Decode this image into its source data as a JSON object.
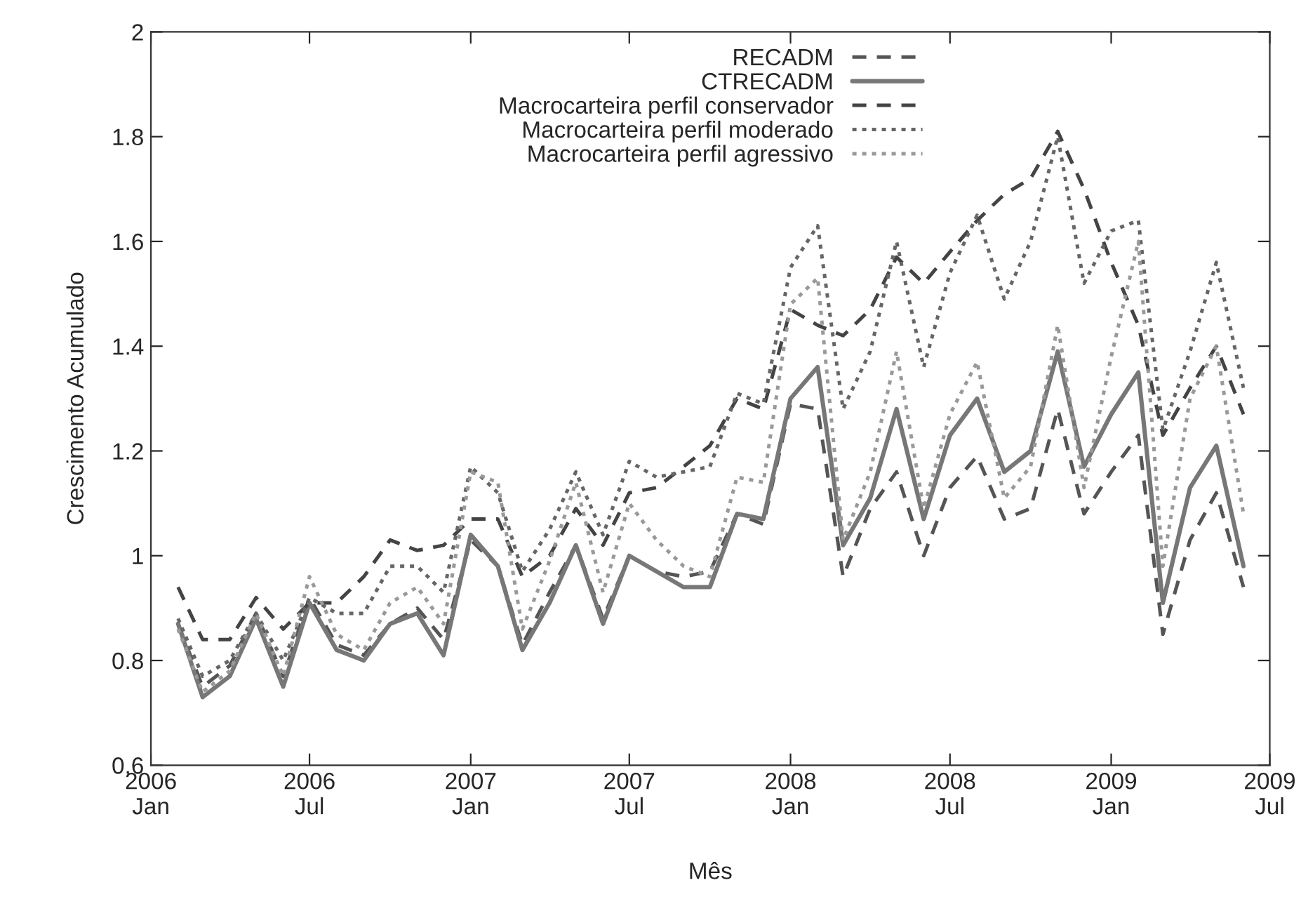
{
  "chart_data": {
    "type": "line",
    "xlabel": "Mês",
    "ylabel": "Crescimento Acumulado",
    "x": [
      "2006-02",
      "2006-03",
      "2006-04",
      "2006-05",
      "2006-06",
      "2006-07",
      "2006-08",
      "2006-09",
      "2006-10",
      "2006-11",
      "2006-12",
      "2007-01",
      "2007-02",
      "2007-03",
      "2007-04",
      "2007-05",
      "2007-06",
      "2007-07",
      "2007-08",
      "2007-09",
      "2007-10",
      "2007-11",
      "2007-12",
      "2008-01",
      "2008-02",
      "2008-03",
      "2008-04",
      "2008-05",
      "2008-06",
      "2008-07",
      "2008-08",
      "2008-09",
      "2008-10",
      "2008-11",
      "2008-12",
      "2009-01",
      "2009-02",
      "2009-03",
      "2009-04",
      "2009-05",
      "2009-06"
    ],
    "series": [
      {
        "name": "RECADM",
        "color": "#555555",
        "line_style": "dashed",
        "values": [
          0.87,
          0.75,
          0.79,
          0.89,
          0.77,
          0.92,
          0.83,
          0.81,
          0.87,
          0.9,
          0.84,
          1.03,
          0.98,
          0.83,
          0.93,
          1.02,
          0.88,
          1.0,
          0.97,
          0.96,
          0.97,
          1.08,
          1.06,
          1.29,
          1.28,
          0.96,
          1.09,
          1.16,
          1.0,
          1.13,
          1.19,
          1.07,
          1.09,
          1.28,
          1.08,
          1.16,
          1.23,
          0.85,
          1.03,
          1.12,
          0.94
        ]
      },
      {
        "name": "CTRECADM",
        "color": "#777777",
        "line_style": "solid",
        "values": [
          0.87,
          0.73,
          0.77,
          0.88,
          0.75,
          0.91,
          0.82,
          0.8,
          0.87,
          0.89,
          0.81,
          1.04,
          0.98,
          0.82,
          0.91,
          1.02,
          0.87,
          1.0,
          0.97,
          0.94,
          0.94,
          1.08,
          1.07,
          1.3,
          1.36,
          1.02,
          1.11,
          1.28,
          1.07,
          1.23,
          1.3,
          1.16,
          1.2,
          1.39,
          1.17,
          1.27,
          1.35,
          0.91,
          1.13,
          1.21,
          0.98
        ]
      },
      {
        "name": "Macrocarteira perfil conservador",
        "color": "#444444",
        "line_style": "dashed",
        "values": [
          0.94,
          0.84,
          0.84,
          0.92,
          0.86,
          0.91,
          0.91,
          0.96,
          1.03,
          1.01,
          1.02,
          1.07,
          1.07,
          0.96,
          1.0,
          1.09,
          1.02,
          1.12,
          1.13,
          1.17,
          1.21,
          1.3,
          1.28,
          1.47,
          1.44,
          1.42,
          1.47,
          1.57,
          1.52,
          1.58,
          1.64,
          1.69,
          1.72,
          1.81,
          1.7,
          1.56,
          1.44,
          1.23,
          1.32,
          1.4,
          1.27
        ]
      },
      {
        "name": "Macrocarteira perfil moderado",
        "color": "#666666",
        "line_style": "dotted",
        "values": [
          0.88,
          0.77,
          0.8,
          0.89,
          0.8,
          0.92,
          0.89,
          0.89,
          0.98,
          0.98,
          0.93,
          1.17,
          1.12,
          0.97,
          1.05,
          1.16,
          1.04,
          1.18,
          1.15,
          1.16,
          1.17,
          1.31,
          1.29,
          1.55,
          1.63,
          1.28,
          1.39,
          1.6,
          1.36,
          1.54,
          1.65,
          1.49,
          1.6,
          1.8,
          1.52,
          1.62,
          1.64,
          1.24,
          1.39,
          1.56,
          1.32
        ]
      },
      {
        "name": "Macrocarteira perfil agressivo",
        "color": "#999999",
        "line_style": "dotted",
        "values": [
          0.86,
          0.74,
          0.78,
          0.89,
          0.77,
          0.96,
          0.85,
          0.82,
          0.91,
          0.94,
          0.87,
          1.16,
          1.14,
          0.86,
          0.99,
          1.14,
          0.93,
          1.1,
          1.03,
          0.98,
          0.96,
          1.15,
          1.14,
          1.48,
          1.53,
          1.03,
          1.16,
          1.39,
          1.09,
          1.27,
          1.37,
          1.11,
          1.17,
          1.44,
          1.13,
          1.38,
          1.6,
          0.98,
          1.3,
          1.4,
          1.08
        ]
      }
    ],
    "xlim": [
      "2006-01",
      "2009-07"
    ],
    "xticks": [
      {
        "value": "2006-01",
        "label": "2006\nJan"
      },
      {
        "value": "2006-07",
        "label": "2006\nJul"
      },
      {
        "value": "2007-01",
        "label": "2007\nJan"
      },
      {
        "value": "2007-07",
        "label": "2007\nJul"
      },
      {
        "value": "2008-01",
        "label": "2008\nJan"
      },
      {
        "value": "2008-07",
        "label": "2008\nJul"
      },
      {
        "value": "2009-01",
        "label": "2009\nJan"
      },
      {
        "value": "2009-07",
        "label": "2009\nJul"
      }
    ],
    "ylim": [
      0.6,
      2
    ],
    "yticks": [
      0.6,
      0.8,
      1,
      1.2,
      1.4,
      1.6,
      1.8,
      2
    ],
    "grid": false,
    "legend": "top",
    "marker": "none"
  }
}
